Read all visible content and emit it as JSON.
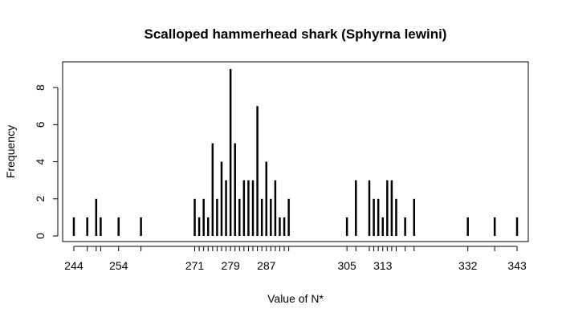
{
  "chart_data": {
    "type": "bar",
    "title": "Scalloped hammerhead shark (Sphyrna lewini)",
    "xlabel": "Value of N*",
    "ylabel": "Frequency",
    "xlim": [
      241.5,
      345.5
    ],
    "ylim": [
      0,
      9
    ],
    "y_ticks": [
      0,
      2,
      4,
      6,
      8
    ],
    "x_tick_labels": [
      244,
      254,
      271,
      279,
      287,
      305,
      313,
      332,
      343
    ],
    "grid": false,
    "legend": "none",
    "bar_color": "#000000",
    "points": [
      {
        "x": 244,
        "y": 1
      },
      {
        "x": 247,
        "y": 1
      },
      {
        "x": 249,
        "y": 2
      },
      {
        "x": 250,
        "y": 1
      },
      {
        "x": 254,
        "y": 1
      },
      {
        "x": 259,
        "y": 1
      },
      {
        "x": 271,
        "y": 2
      },
      {
        "x": 272,
        "y": 1
      },
      {
        "x": 273,
        "y": 2
      },
      {
        "x": 274,
        "y": 1
      },
      {
        "x": 275,
        "y": 5
      },
      {
        "x": 276,
        "y": 2
      },
      {
        "x": 277,
        "y": 4
      },
      {
        "x": 278,
        "y": 3
      },
      {
        "x": 279,
        "y": 9
      },
      {
        "x": 280,
        "y": 5
      },
      {
        "x": 281,
        "y": 2
      },
      {
        "x": 282,
        "y": 3
      },
      {
        "x": 283,
        "y": 3
      },
      {
        "x": 284,
        "y": 3
      },
      {
        "x": 285,
        "y": 7
      },
      {
        "x": 286,
        "y": 2
      },
      {
        "x": 287,
        "y": 4
      },
      {
        "x": 288,
        "y": 2
      },
      {
        "x": 289,
        "y": 3
      },
      {
        "x": 290,
        "y": 1
      },
      {
        "x": 291,
        "y": 1
      },
      {
        "x": 292,
        "y": 2
      },
      {
        "x": 305,
        "y": 1
      },
      {
        "x": 307,
        "y": 3
      },
      {
        "x": 310,
        "y": 3
      },
      {
        "x": 311,
        "y": 2
      },
      {
        "x": 312,
        "y": 2
      },
      {
        "x": 313,
        "y": 1
      },
      {
        "x": 314,
        "y": 3
      },
      {
        "x": 315,
        "y": 3
      },
      {
        "x": 316,
        "y": 2
      },
      {
        "x": 318,
        "y": 1
      },
      {
        "x": 320,
        "y": 2
      },
      {
        "x": 332,
        "y": 1
      },
      {
        "x": 338,
        "y": 1
      },
      {
        "x": 343,
        "y": 1
      }
    ]
  }
}
